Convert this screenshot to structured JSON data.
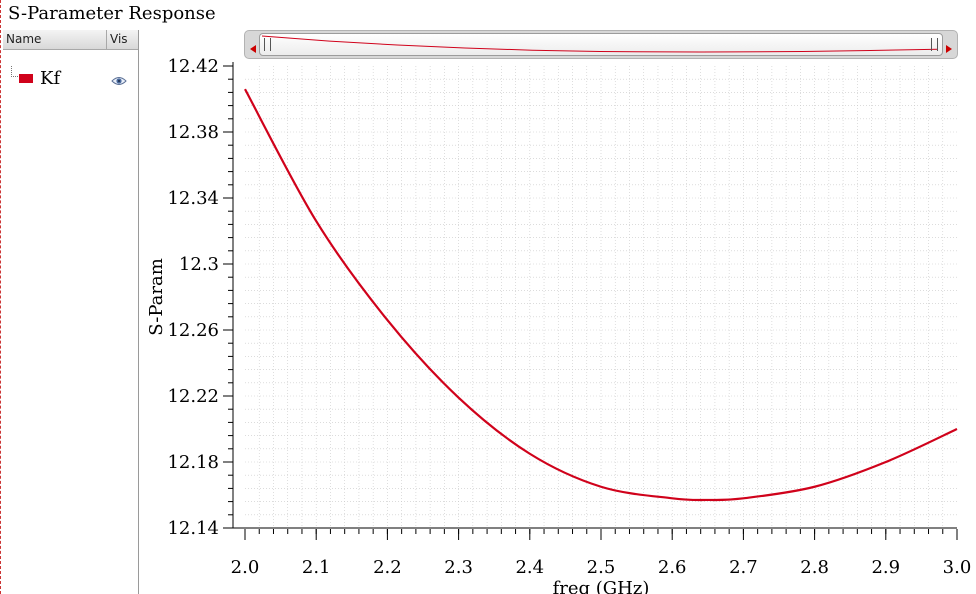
{
  "window": {
    "title": "S-Parameter Response"
  },
  "legend": {
    "columns": {
      "name": "Name",
      "vis": "Vis"
    },
    "items": [
      {
        "name": "Kf",
        "color": "#d0021b",
        "visible": true,
        "icon": "eye-icon"
      }
    ]
  },
  "overview": {
    "icons": [
      "arrow-left-icon",
      "grip-icon",
      "grip-icon",
      "arrow-right-icon"
    ]
  },
  "chart_data": {
    "type": "line",
    "title": "",
    "xlabel": "freq (GHz)",
    "ylabel": "S-Param",
    "xlim": [
      2.0,
      3.0
    ],
    "ylim": [
      12.14,
      12.42
    ],
    "x_ticks": [
      2.0,
      2.1,
      2.2,
      2.3,
      2.4,
      2.5,
      2.6,
      2.7,
      2.8,
      2.9,
      3.0
    ],
    "x_tick_labels": [
      "2.0",
      "2.1",
      "2.2",
      "2.3",
      "2.4",
      "2.5",
      "2.6",
      "2.7",
      "2.8",
      "2.9",
      "3.0"
    ],
    "y_ticks": [
      12.14,
      12.18,
      12.22,
      12.26,
      12.3,
      12.34,
      12.38,
      12.42
    ],
    "y_tick_labels": [
      "12.14",
      "12.18",
      "12.22",
      "12.26",
      "12.3",
      "12.34",
      "12.38",
      "12.42"
    ],
    "grid": true,
    "series": [
      {
        "name": "Kf",
        "color": "#d0021b",
        "x": [
          2.0,
          2.1,
          2.2,
          2.3,
          2.4,
          2.5,
          2.6,
          2.65,
          2.7,
          2.8,
          2.9,
          3.0
        ],
        "y": [
          12.406,
          12.326,
          12.266,
          12.219,
          12.185,
          12.165,
          12.158,
          12.157,
          12.158,
          12.165,
          12.18,
          12.2
        ]
      }
    ]
  }
}
